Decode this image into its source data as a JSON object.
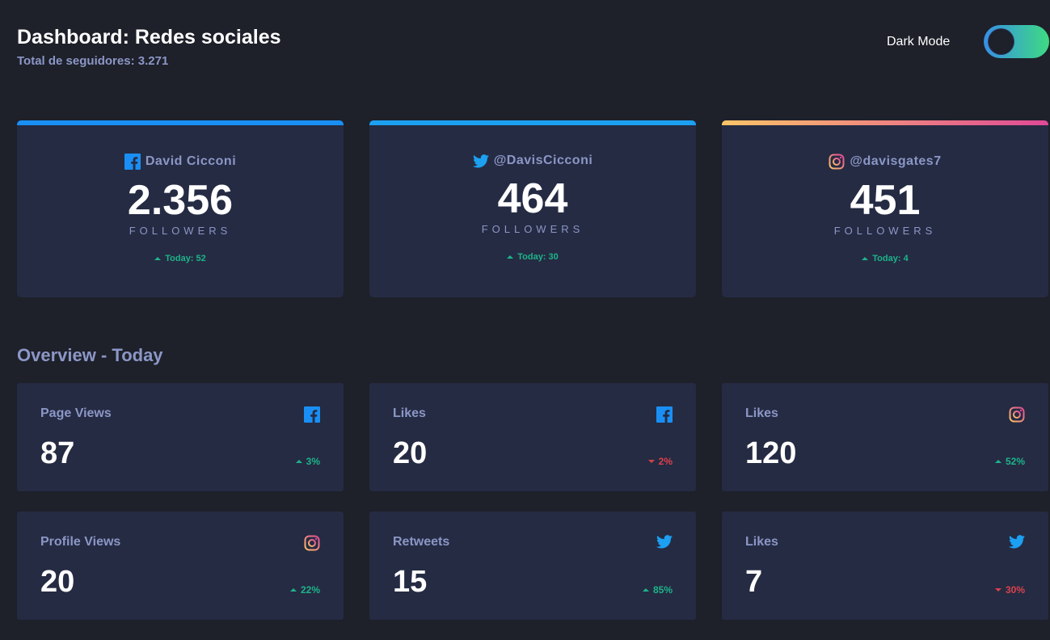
{
  "header": {
    "title": "Dashboard: Redes sociales",
    "subtitle": "Total de seguidores: 3.271",
    "dark_mode_label": "Dark Mode"
  },
  "cards": [
    {
      "network": "facebook",
      "icon": "facebook-icon",
      "handle": "David Cicconi",
      "count": "2.356",
      "unit": "FOLLOWERS",
      "today": "Today: 52",
      "trend": "up"
    },
    {
      "network": "twitter",
      "icon": "twitter-icon",
      "handle": "@DavisCicconi",
      "count": "464",
      "unit": "FOLLOWERS",
      "today": "Today: 30",
      "trend": "up"
    },
    {
      "network": "instagram",
      "icon": "instagram-icon",
      "handle": "@davisgates7",
      "count": "451",
      "unit": "FOLLOWERS",
      "today": "Today: 4",
      "trend": "up"
    }
  ],
  "overview": {
    "title": "Overview - Today",
    "items": [
      {
        "label": "Page Views",
        "icon": "facebook-icon",
        "value": "87",
        "change": "3%",
        "trend": "up"
      },
      {
        "label": "Likes",
        "icon": "facebook-icon",
        "value": "20",
        "change": "2%",
        "trend": "down"
      },
      {
        "label": "Likes",
        "icon": "instagram-icon",
        "value": "120",
        "change": "52%",
        "trend": "up"
      },
      {
        "label": "Profile Views",
        "icon": "instagram-icon",
        "value": "20",
        "change": "22%",
        "trend": "up"
      },
      {
        "label": "Retweets",
        "icon": "twitter-icon",
        "value": "15",
        "change": "85%",
        "trend": "up"
      },
      {
        "label": "Likes",
        "icon": "twitter-icon",
        "value": "7",
        "change": "30%",
        "trend": "down"
      }
    ]
  },
  "colors": {
    "background": "#1e202a",
    "card": "#252b43",
    "muted_text": "#8b97c6",
    "up": "#1db489",
    "down": "#dc414c",
    "facebook": "#198ff5",
    "twitter": "#1ca0f2"
  }
}
